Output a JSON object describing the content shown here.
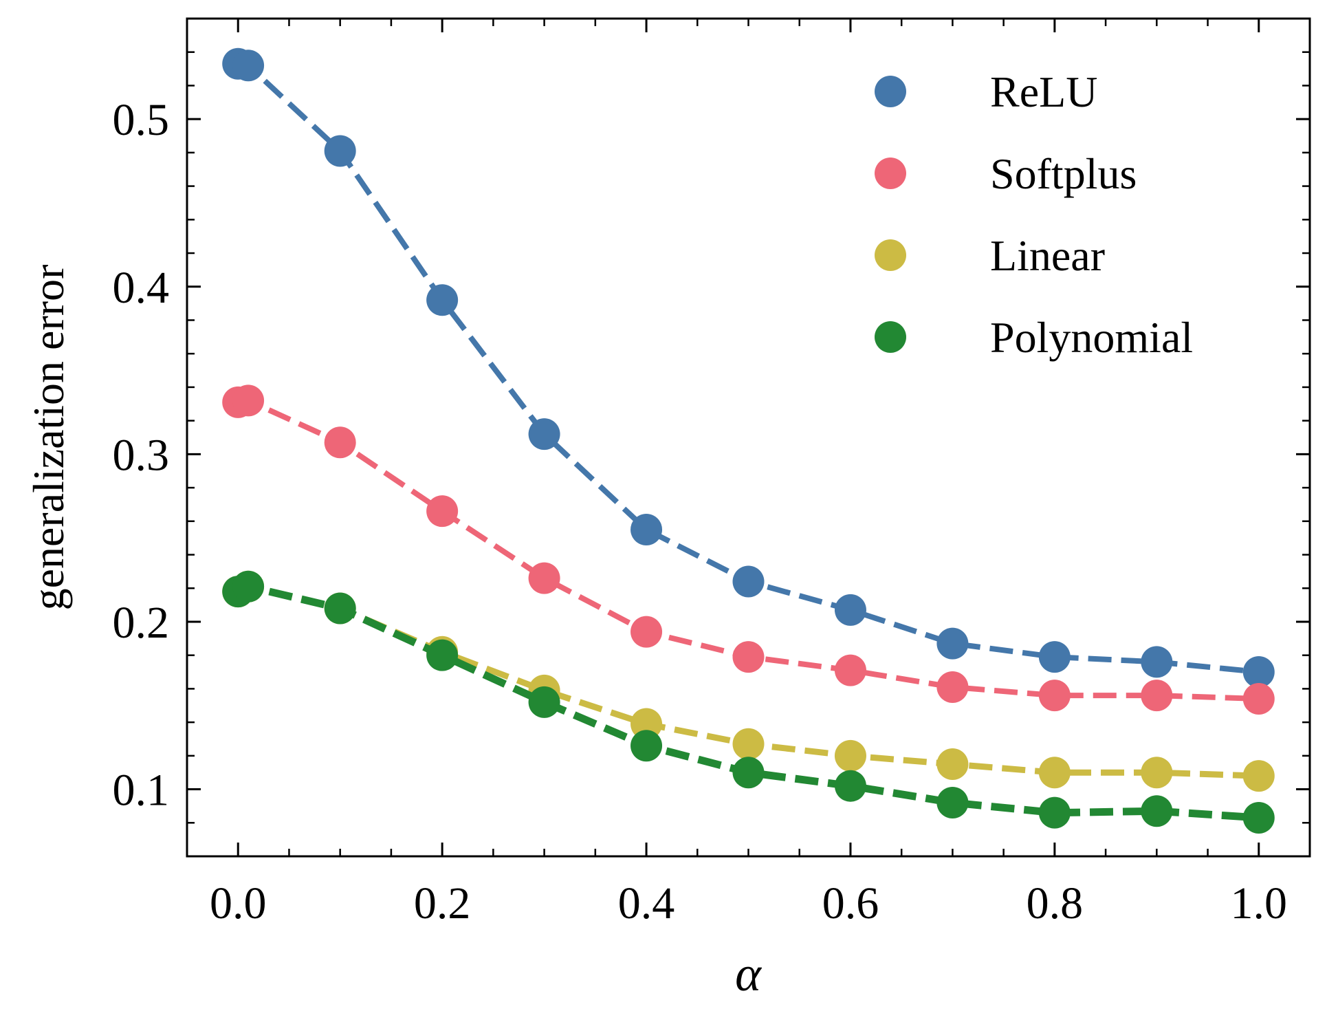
{
  "chart_data": {
    "type": "line",
    "title": "",
    "xlabel": "α",
    "ylabel": "generalization error",
    "xlim": [
      -0.05,
      1.05
    ],
    "ylim": [
      0.06,
      0.56
    ],
    "x_ticks": [
      0.0,
      0.2,
      0.4,
      0.6,
      0.8,
      1.0
    ],
    "x_tick_labels": [
      "0.0",
      "0.2",
      "0.4",
      "0.6",
      "0.8",
      "1.0"
    ],
    "y_ticks": [
      0.1,
      0.2,
      0.3,
      0.4,
      0.5
    ],
    "y_tick_labels": [
      "0.1",
      "0.2",
      "0.3",
      "0.4",
      "0.5"
    ],
    "x_minor_step": 0.05,
    "y_minor_step": 0.02,
    "grid": false,
    "legend_position": "top-right",
    "x": [
      0.0,
      0.01,
      0.1,
      0.2,
      0.3,
      0.4,
      0.5,
      0.6,
      0.7,
      0.8,
      0.9,
      1.0
    ],
    "series": [
      {
        "name": "ReLU",
        "color": "#4477aa",
        "dash": "dashed",
        "values": [
          0.533,
          0.532,
          0.481,
          0.392,
          0.312,
          0.255,
          0.224,
          0.207,
          0.187,
          0.179,
          0.176,
          0.17
        ]
      },
      {
        "name": "Softplus",
        "color": "#ee6677",
        "dash": "dashed",
        "values": [
          0.331,
          0.332,
          0.307,
          0.266,
          0.226,
          0.194,
          0.179,
          0.171,
          0.161,
          0.156,
          0.156,
          0.154
        ]
      },
      {
        "name": "Linear",
        "color": "#ccbb44",
        "dash": "dashed",
        "values": [
          0.218,
          0.221,
          0.208,
          0.182,
          0.159,
          0.139,
          0.127,
          0.12,
          0.115,
          0.11,
          0.11,
          0.108
        ]
      },
      {
        "name": "Polynomial",
        "color": "#228833",
        "dash": "dashed",
        "values": [
          0.218,
          0.221,
          0.208,
          0.18,
          0.152,
          0.126,
          0.11,
          0.102,
          0.092,
          0.086,
          0.087,
          0.083
        ]
      }
    ]
  }
}
